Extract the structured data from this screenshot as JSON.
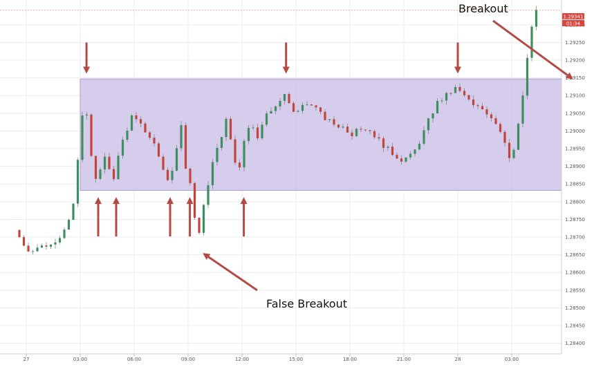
{
  "chart_data": {
    "type": "candlestick",
    "y_ticks": [
      "1.29300",
      "1.29250",
      "1.29200",
      "1.29150",
      "1.29100",
      "1.29050",
      "1.29000",
      "1.28950",
      "1.28900",
      "1.28850",
      "1.28800",
      "1.28750",
      "1.28700",
      "1.28650",
      "1.28600",
      "1.28550",
      "1.28500",
      "1.28450",
      "1.28400"
    ],
    "x_ticks": [
      "27",
      "03:00",
      "06:00",
      "09:00",
      "12:00",
      "15:00",
      "18:00",
      "21:00",
      "28",
      "03:00"
    ],
    "ylim": [
      1.2837,
      1.2937
    ],
    "grid": true,
    "current_price_label": "1.29341",
    "countdown_label": "01:34",
    "colors": {
      "up": "#3e8e62",
      "down": "#c0463c",
      "wick": "#7b7b7b",
      "range": "#c9bfe6",
      "arrow": "#b44a44",
      "badge": "#d9473f"
    },
    "range_box": {
      "top": 1.29147,
      "bottom": 1.28832,
      "from_hour": 3.0,
      "to_hour": 31.25
    },
    "annotations": [
      {
        "text": "Breakout",
        "target_hour": 30.3,
        "target_price": 1.2915
      },
      {
        "text": "False Breakout",
        "target_hour": 9.7,
        "target_price": 1.28655
      }
    ],
    "touch_arrows": [
      {
        "direction": "down",
        "hour": 3.35,
        "price": 1.2916
      },
      {
        "direction": "down",
        "hour": 14.45,
        "price": 1.2916
      },
      {
        "direction": "down",
        "hour": 24.0,
        "price": 1.2916
      },
      {
        "direction": "up",
        "hour": 4.0,
        "price": 1.28815
      },
      {
        "direction": "up",
        "hour": 5.0,
        "price": 1.28815
      },
      {
        "direction": "up",
        "hour": 8.0,
        "price": 1.28815
      },
      {
        "direction": "up",
        "hour": 9.1,
        "price": 1.28815
      },
      {
        "direction": "up",
        "hour": 12.1,
        "price": 1.28815
      }
    ],
    "price_path": [
      [
        -0.5,
        1.2872
      ],
      [
        0.3,
        1.2866
      ],
      [
        1.0,
        1.2867
      ],
      [
        2.0,
        1.287
      ],
      [
        2.7,
        1.2876
      ],
      [
        3.1,
        1.2898
      ],
      [
        3.4,
        1.291
      ],
      [
        3.7,
        1.2895
      ],
      [
        4.0,
        1.2886
      ],
      [
        4.5,
        1.2892
      ],
      [
        5.0,
        1.2887
      ],
      [
        5.4,
        1.2896
      ],
      [
        6.0,
        1.2904
      ],
      [
        6.6,
        1.2901
      ],
      [
        7.2,
        1.2897
      ],
      [
        7.7,
        1.289
      ],
      [
        8.0,
        1.2886
      ],
      [
        8.4,
        1.289
      ],
      [
        8.7,
        1.2903
      ],
      [
        9.0,
        1.289
      ],
      [
        9.4,
        1.2882
      ],
      [
        9.65,
        1.2867
      ],
      [
        10.0,
        1.2879
      ],
      [
        10.5,
        1.2891
      ],
      [
        11.0,
        1.2898
      ],
      [
        11.3,
        1.2905
      ],
      [
        11.6,
        1.2895
      ],
      [
        11.9,
        1.2887
      ],
      [
        12.2,
        1.2897
      ],
      [
        12.6,
        1.2903
      ],
      [
        13.0,
        1.2898
      ],
      [
        13.5,
        1.2905
      ],
      [
        14.0,
        1.2907
      ],
      [
        14.5,
        1.291
      ],
      [
        15.0,
        1.2905
      ],
      [
        15.5,
        1.2907
      ],
      [
        16.0,
        1.2908
      ],
      [
        16.6,
        1.2904
      ],
      [
        17.2,
        1.2902
      ],
      [
        17.8,
        1.2901
      ],
      [
        18.3,
        1.2899
      ],
      [
        18.8,
        1.2901
      ],
      [
        19.3,
        1.29
      ],
      [
        19.8,
        1.2897
      ],
      [
        20.4,
        1.2894
      ],
      [
        21.0,
        1.2892
      ],
      [
        21.6,
        1.2893
      ],
      [
        22.1,
        1.2898
      ],
      [
        22.6,
        1.2904
      ],
      [
        23.0,
        1.2908
      ],
      [
        23.5,
        1.291
      ],
      [
        24.0,
        1.2912
      ],
      [
        24.5,
        1.291
      ],
      [
        25.0,
        1.2907
      ],
      [
        25.6,
        1.2906
      ],
      [
        26.2,
        1.2903
      ],
      [
        26.7,
        1.2898
      ],
      [
        27.0,
        1.2893
      ],
      [
        27.3,
        1.2895
      ],
      [
        27.7,
        1.2908
      ],
      [
        27.95,
        1.2918
      ],
      [
        28.2,
        1.2928
      ],
      [
        28.4,
        1.2934
      ]
    ]
  }
}
